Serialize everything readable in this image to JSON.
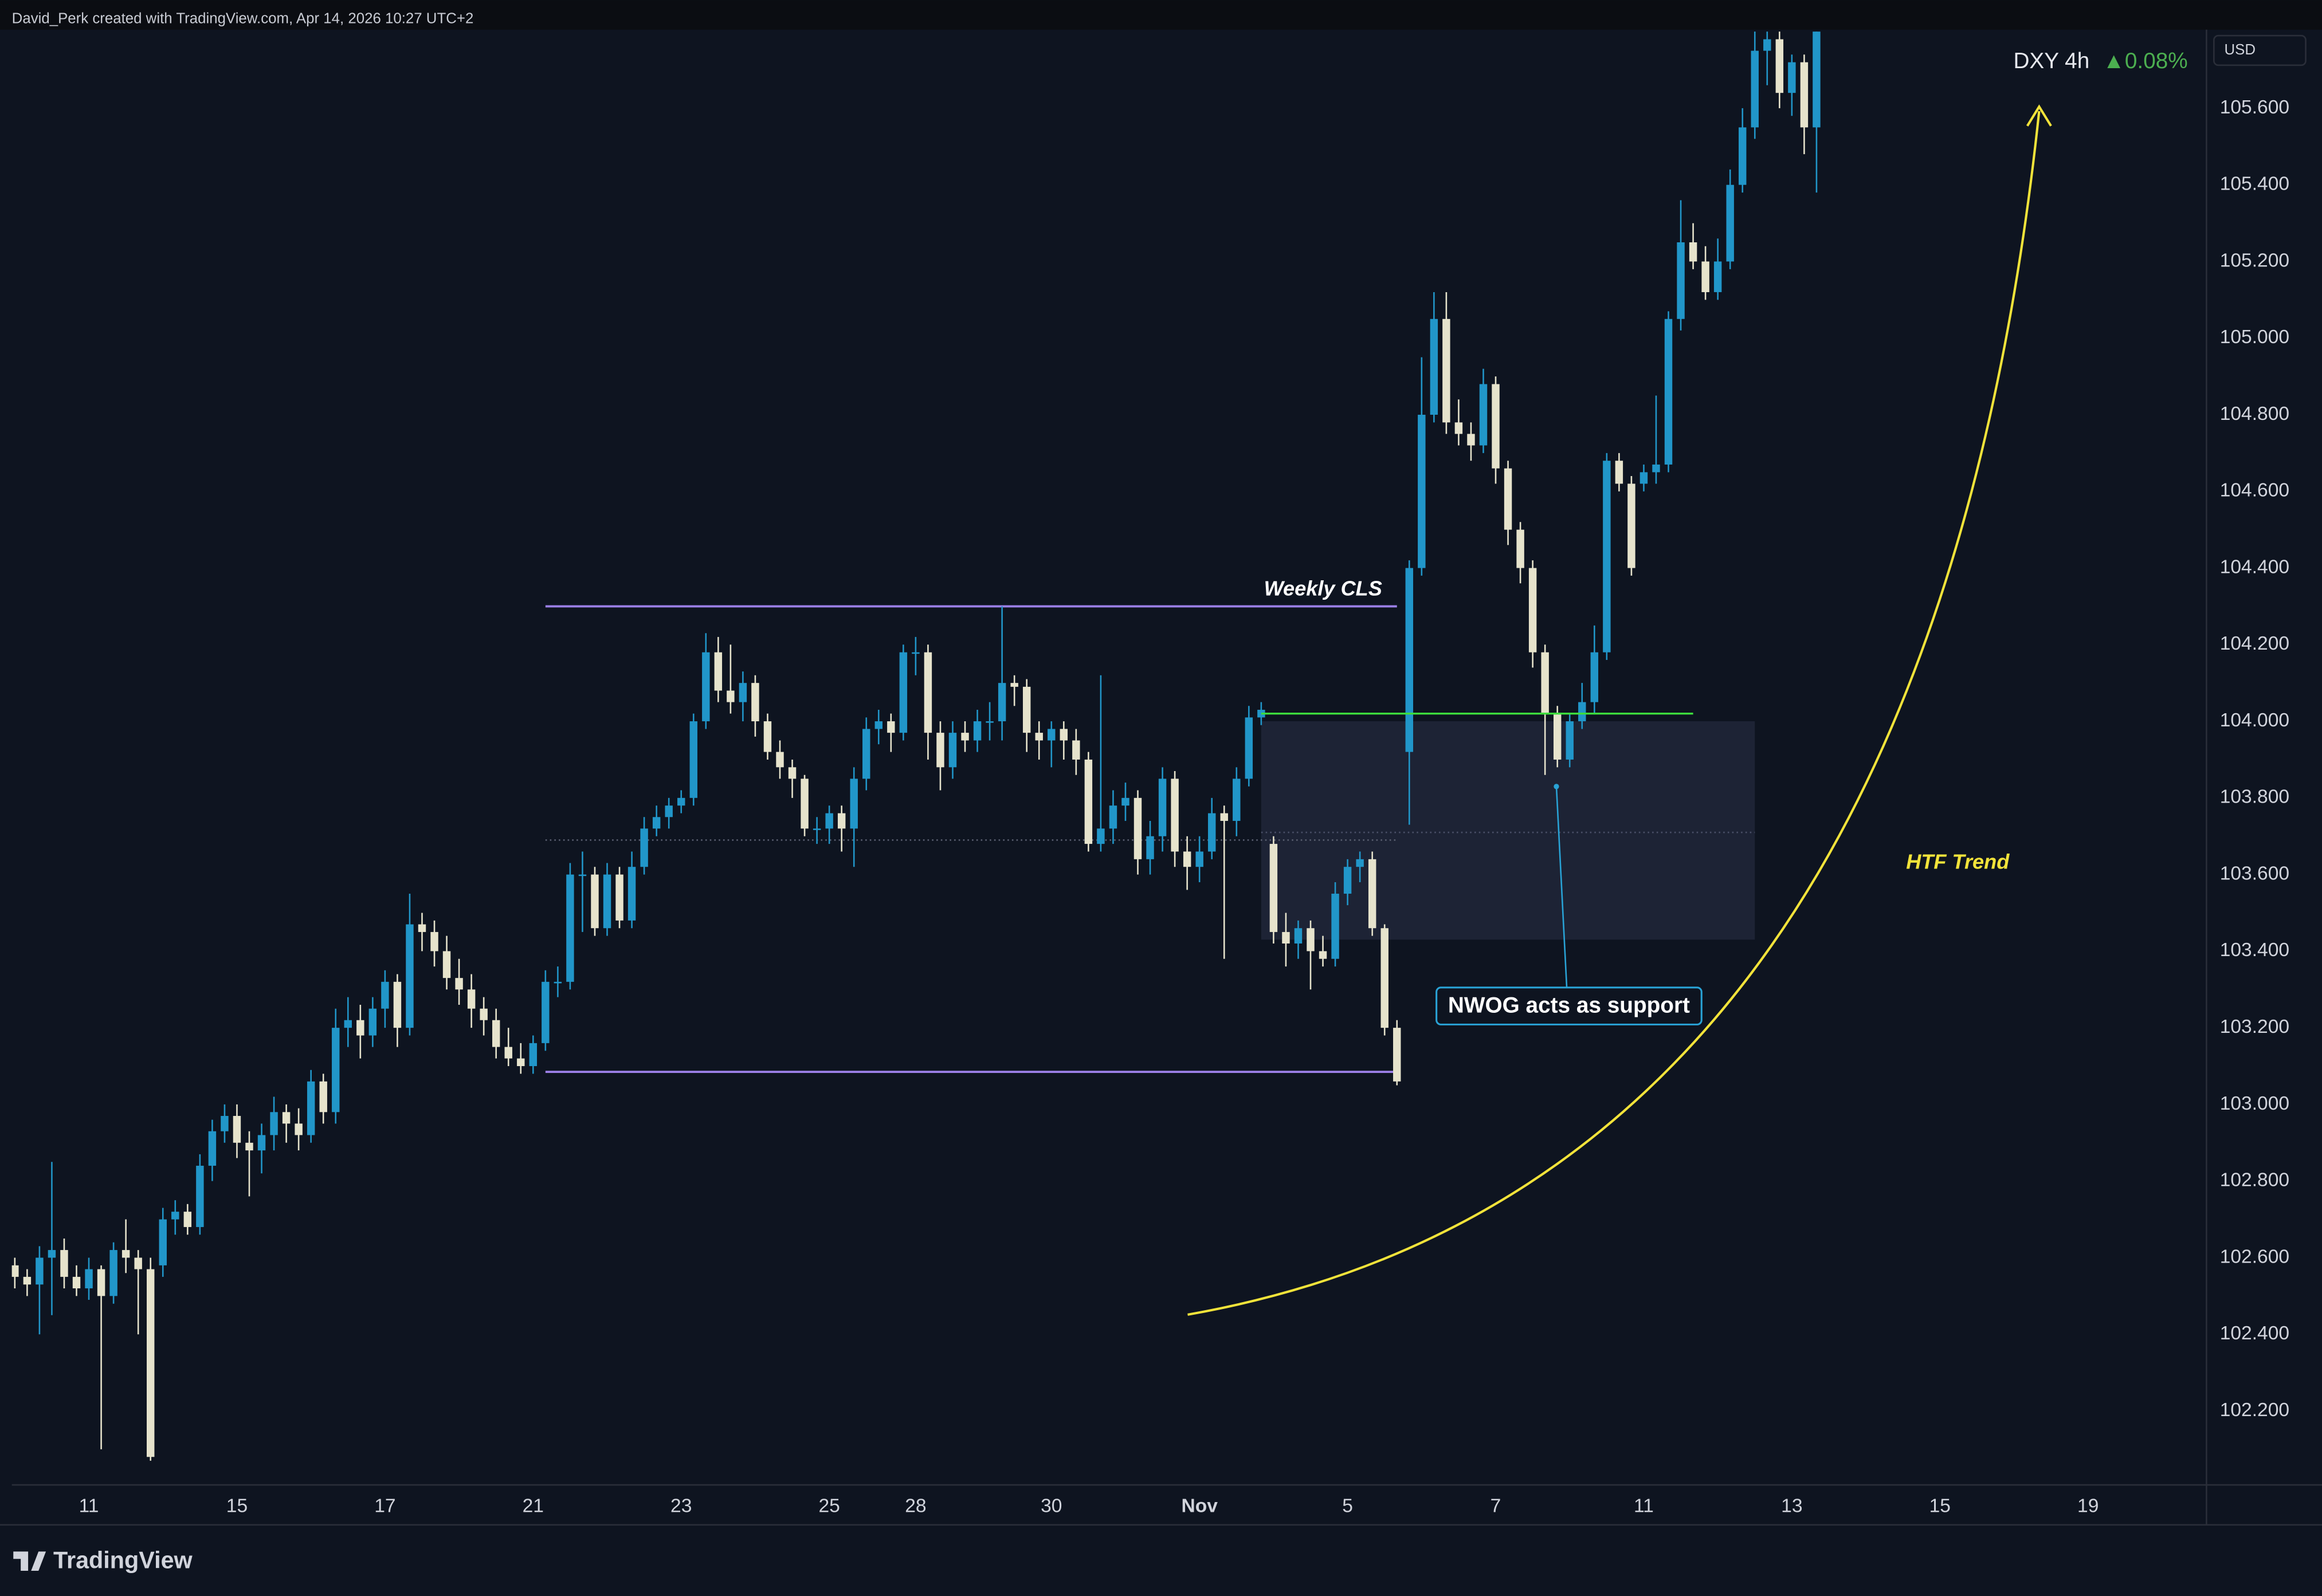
{
  "header": "David_Perk created with TradingView.com, Apr 14, 2026 10:27 UTC+2",
  "footer": "TradingView",
  "chart_data": {
    "type": "candlestick",
    "symbol": "DXY 4h",
    "change": "▲0.08%",
    "currency": "USD",
    "bull_color": "#2196c9",
    "bear_color": "#e6e3cc",
    "xlim": [
      -0.24,
      177.6
    ],
    "ylim": [
      102.007,
      105.805
    ],
    "xticks": [
      {
        "value": 6,
        "label": "11"
      },
      {
        "value": 18,
        "label": "15"
      },
      {
        "value": 30,
        "label": "17"
      },
      {
        "value": 42,
        "label": "21"
      },
      {
        "value": 54,
        "label": "23"
      },
      {
        "value": 66,
        "label": "25"
      },
      {
        "value": 73,
        "label": "28"
      },
      {
        "value": 84,
        "label": "30"
      },
      {
        "value": 96,
        "label": "Nov"
      },
      {
        "value": 108,
        "label": "5"
      },
      {
        "value": 120,
        "label": "7"
      },
      {
        "value": 132,
        "label": "11"
      },
      {
        "value": 144,
        "label": "13"
      },
      {
        "value": 156,
        "label": "15"
      },
      {
        "value": 168,
        "label": "19"
      }
    ],
    "yticks": [
      {
        "value": 102.2,
        "label": "102.200"
      },
      {
        "value": 102.4,
        "label": "102.400"
      },
      {
        "value": 102.6,
        "label": "102.600"
      },
      {
        "value": 102.8,
        "label": "102.800"
      },
      {
        "value": 103.0,
        "label": "103.000"
      },
      {
        "value": 103.2,
        "label": "103.200"
      },
      {
        "value": 103.4,
        "label": "103.400"
      },
      {
        "value": 103.6,
        "label": "103.600"
      },
      {
        "value": 103.8,
        "label": "103.800"
      },
      {
        "value": 104.0,
        "label": "104.000"
      },
      {
        "value": 104.2,
        "label": "104.200"
      },
      {
        "value": 104.4,
        "label": "104.400"
      },
      {
        "value": 104.6,
        "label": "104.600"
      },
      {
        "value": 104.8,
        "label": "104.800"
      },
      {
        "value": 105.0,
        "label": "105.000"
      },
      {
        "value": 105.2,
        "label": "105.200"
      },
      {
        "value": 105.4,
        "label": "105.400"
      },
      {
        "value": 105.6,
        "label": "105.600"
      }
    ],
    "candles": [
      [
        102.58,
        102.6,
        102.52,
        102.55
      ],
      [
        102.55,
        102.57,
        102.5,
        102.53
      ],
      [
        102.53,
        102.63,
        102.4,
        102.6
      ],
      [
        102.6,
        102.85,
        102.45,
        102.62
      ],
      [
        102.62,
        102.65,
        102.52,
        102.55
      ],
      [
        102.55,
        102.58,
        102.5,
        102.52
      ],
      [
        102.52,
        102.6,
        102.49,
        102.57
      ],
      [
        102.57,
        102.58,
        102.1,
        102.5
      ],
      [
        102.5,
        102.64,
        102.48,
        102.62
      ],
      [
        102.62,
        102.7,
        102.56,
        102.6
      ],
      [
        102.6,
        102.62,
        102.4,
        102.57
      ],
      [
        102.57,
        102.6,
        102.07,
        102.08
      ],
      [
        102.58,
        102.73,
        102.55,
        102.7
      ],
      [
        102.7,
        102.75,
        102.66,
        102.72
      ],
      [
        102.72,
        102.74,
        102.66,
        102.68
      ],
      [
        102.68,
        102.87,
        102.66,
        102.84
      ],
      [
        102.84,
        102.96,
        102.8,
        102.93
      ],
      [
        102.93,
        103.0,
        102.9,
        102.97
      ],
      [
        102.97,
        103.0,
        102.86,
        102.9
      ],
      [
        102.9,
        102.93,
        102.76,
        102.88
      ],
      [
        102.88,
        102.95,
        102.82,
        102.92
      ],
      [
        102.92,
        103.02,
        102.88,
        102.98
      ],
      [
        102.98,
        103.0,
        102.9,
        102.95
      ],
      [
        102.95,
        102.99,
        102.88,
        102.92
      ],
      [
        102.92,
        103.09,
        102.9,
        103.06
      ],
      [
        103.06,
        103.08,
        102.95,
        102.98
      ],
      [
        102.98,
        103.25,
        102.95,
        103.2
      ],
      [
        103.2,
        103.28,
        103.15,
        103.22
      ],
      [
        103.22,
        103.26,
        103.12,
        103.18
      ],
      [
        103.18,
        103.28,
        103.15,
        103.25
      ],
      [
        103.25,
        103.35,
        103.2,
        103.32
      ],
      [
        103.32,
        103.34,
        103.15,
        103.2
      ],
      [
        103.2,
        103.55,
        103.18,
        103.47
      ],
      [
        103.47,
        103.5,
        103.4,
        103.45
      ],
      [
        103.45,
        103.48,
        103.36,
        103.4
      ],
      [
        103.4,
        103.44,
        103.3,
        103.33
      ],
      [
        103.33,
        103.38,
        103.26,
        103.3
      ],
      [
        103.3,
        103.34,
        103.2,
        103.25
      ],
      [
        103.25,
        103.28,
        103.18,
        103.22
      ],
      [
        103.22,
        103.25,
        103.12,
        103.15
      ],
      [
        103.15,
        103.2,
        103.1,
        103.12
      ],
      [
        103.12,
        103.16,
        103.08,
        103.1
      ],
      [
        103.1,
        103.18,
        103.08,
        103.16
      ],
      [
        103.16,
        103.35,
        103.14,
        103.32
      ],
      [
        103.32,
        103.36,
        103.28,
        103.32
      ],
      [
        103.32,
        103.63,
        103.3,
        103.6
      ],
      [
        103.6,
        103.66,
        103.45,
        103.6
      ],
      [
        103.6,
        103.62,
        103.44,
        103.46
      ],
      [
        103.46,
        103.63,
        103.44,
        103.6
      ],
      [
        103.6,
        103.62,
        103.46,
        103.48
      ],
      [
        103.48,
        103.66,
        103.46,
        103.62
      ],
      [
        103.62,
        103.75,
        103.6,
        103.72
      ],
      [
        103.72,
        103.78,
        103.7,
        103.75
      ],
      [
        103.75,
        103.8,
        103.72,
        103.78
      ],
      [
        103.78,
        103.82,
        103.76,
        103.8
      ],
      [
        103.8,
        104.02,
        103.78,
        104.0
      ],
      [
        104.0,
        104.23,
        103.98,
        104.18
      ],
      [
        104.18,
        104.22,
        104.05,
        104.08
      ],
      [
        104.08,
        104.2,
        104.02,
        104.05
      ],
      [
        104.05,
        104.13,
        104.0,
        104.1
      ],
      [
        104.1,
        104.12,
        103.96,
        104.0
      ],
      [
        104.0,
        104.02,
        103.9,
        103.92
      ],
      [
        103.92,
        103.95,
        103.85,
        103.88
      ],
      [
        103.88,
        103.9,
        103.8,
        103.85
      ],
      [
        103.85,
        103.86,
        103.7,
        103.72
      ],
      [
        103.72,
        103.75,
        103.68,
        103.72
      ],
      [
        103.72,
        103.78,
        103.68,
        103.76
      ],
      [
        103.76,
        103.78,
        103.66,
        103.72
      ],
      [
        103.72,
        103.88,
        103.62,
        103.85
      ],
      [
        103.85,
        104.01,
        103.82,
        103.98
      ],
      [
        103.98,
        104.03,
        103.94,
        104.0
      ],
      [
        104.0,
        104.02,
        103.92,
        103.97
      ],
      [
        103.97,
        104.2,
        103.95,
        104.18
      ],
      [
        104.18,
        104.22,
        104.12,
        104.18
      ],
      [
        104.18,
        104.2,
        103.9,
        103.97
      ],
      [
        103.97,
        104.0,
        103.82,
        103.88
      ],
      [
        103.88,
        104.0,
        103.85,
        103.97
      ],
      [
        103.97,
        104.0,
        103.92,
        103.95
      ],
      [
        103.95,
        104.03,
        103.92,
        104.0
      ],
      [
        104.0,
        104.05,
        103.95,
        104.0
      ],
      [
        104.0,
        104.3,
        103.95,
        104.1
      ],
      [
        104.1,
        104.12,
        104.04,
        104.09
      ],
      [
        104.09,
        104.11,
        103.92,
        103.97
      ],
      [
        103.97,
        104.0,
        103.9,
        103.95
      ],
      [
        103.95,
        104.0,
        103.88,
        103.98
      ],
      [
        103.98,
        104.0,
        103.9,
        103.95
      ],
      [
        103.95,
        103.98,
        103.86,
        103.9
      ],
      [
        103.9,
        103.92,
        103.66,
        103.68
      ],
      [
        103.68,
        104.12,
        103.66,
        103.72
      ],
      [
        103.72,
        103.82,
        103.68,
        103.78
      ],
      [
        103.78,
        103.84,
        103.74,
        103.8
      ],
      [
        103.8,
        103.82,
        103.6,
        103.64
      ],
      [
        103.64,
        103.74,
        103.6,
        103.7
      ],
      [
        103.7,
        103.88,
        103.66,
        103.85
      ],
      [
        103.85,
        103.87,
        103.62,
        103.66
      ],
      [
        103.66,
        103.7,
        103.56,
        103.62
      ],
      [
        103.62,
        103.7,
        103.58,
        103.66
      ],
      [
        103.66,
        103.8,
        103.64,
        103.76
      ],
      [
        103.76,
        103.78,
        103.38,
        103.74
      ],
      [
        103.74,
        103.88,
        103.7,
        103.85
      ],
      [
        103.85,
        104.04,
        103.83,
        104.01
      ],
      [
        104.01,
        104.05,
        103.99,
        104.03
      ],
      [
        103.68,
        103.7,
        103.42,
        103.45
      ],
      [
        103.45,
        103.5,
        103.36,
        103.42
      ],
      [
        103.42,
        103.48,
        103.38,
        103.46
      ],
      [
        103.46,
        103.48,
        103.3,
        103.4
      ],
      [
        103.4,
        103.44,
        103.36,
        103.38
      ],
      [
        103.38,
        103.58,
        103.36,
        103.55
      ],
      [
        103.55,
        103.64,
        103.52,
        103.62
      ],
      [
        103.62,
        103.66,
        103.58,
        103.64
      ],
      [
        103.64,
        103.66,
        103.44,
        103.46
      ],
      [
        103.46,
        103.47,
        103.18,
        103.2
      ],
      [
        103.2,
        103.22,
        103.05,
        103.06
      ],
      [
        103.92,
        104.42,
        103.73,
        104.4
      ],
      [
        104.4,
        104.95,
        104.38,
        104.8
      ],
      [
        104.8,
        105.12,
        104.78,
        105.05
      ],
      [
        105.05,
        105.12,
        104.75,
        104.78
      ],
      [
        104.78,
        104.84,
        104.72,
        104.75
      ],
      [
        104.75,
        104.78,
        104.68,
        104.72
      ],
      [
        104.72,
        104.92,
        104.7,
        104.88
      ],
      [
        104.88,
        104.9,
        104.62,
        104.66
      ],
      [
        104.66,
        104.68,
        104.46,
        104.5
      ],
      [
        104.5,
        104.52,
        104.36,
        104.4
      ],
      [
        104.4,
        104.42,
        104.14,
        104.18
      ],
      [
        104.18,
        104.2,
        103.86,
        104.02
      ],
      [
        104.02,
        104.04,
        103.88,
        103.9
      ],
      [
        103.9,
        104.02,
        103.88,
        104.0
      ],
      [
        104.0,
        104.1,
        103.98,
        104.05
      ],
      [
        104.05,
        104.25,
        104.02,
        104.18
      ],
      [
        104.18,
        104.7,
        104.16,
        104.68
      ],
      [
        104.68,
        104.7,
        104.6,
        104.62
      ],
      [
        104.62,
        104.64,
        104.38,
        104.4
      ],
      [
        104.62,
        104.67,
        104.6,
        104.65
      ],
      [
        104.65,
        104.85,
        104.62,
        104.67
      ],
      [
        104.67,
        105.07,
        104.65,
        105.05
      ],
      [
        105.05,
        105.36,
        105.02,
        105.25
      ],
      [
        105.25,
        105.3,
        105.18,
        105.2
      ],
      [
        105.2,
        105.24,
        105.1,
        105.12
      ],
      [
        105.12,
        105.26,
        105.1,
        105.2
      ],
      [
        105.2,
        105.44,
        105.18,
        105.4
      ],
      [
        105.4,
        105.6,
        105.38,
        105.55
      ],
      [
        105.55,
        105.8,
        105.52,
        105.75
      ],
      [
        105.75,
        105.8,
        105.66,
        105.78
      ],
      [
        105.78,
        105.8,
        105.6,
        105.64
      ],
      [
        105.64,
        105.74,
        105.58,
        105.72
      ],
      [
        105.72,
        105.74,
        105.48,
        105.55
      ],
      [
        105.55,
        105.8,
        105.38,
        105.8
      ]
    ],
    "weekly_range": {
      "label": "Weekly CLS",
      "high": 104.3,
      "low": 103.085,
      "mid": 103.69,
      "x": [
        43,
        112
      ],
      "color": "#9b7fe6"
    },
    "nwog": {
      "label": "NWOG acts as support",
      "top": 104.0,
      "bottom": 103.43,
      "mid": 103.71,
      "x": [
        101,
        141
      ],
      "level": 104.02,
      "level_x": [
        101,
        136
      ],
      "level_color": "#3ddc3d"
    },
    "trend_label": "HTF Trend"
  }
}
